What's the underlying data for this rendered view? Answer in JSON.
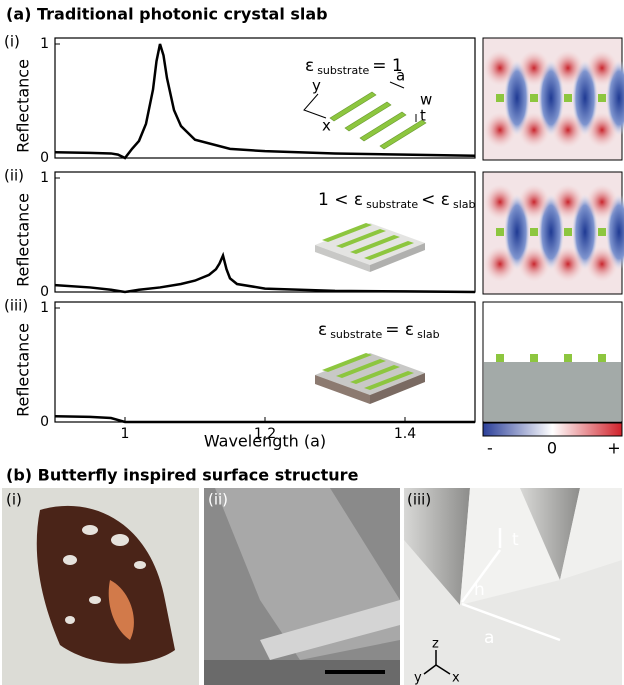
{
  "figure": {
    "title_a": "(a) Traditional photonic crystal slab",
    "title_b": "(b) Butterfly inspired surface structure",
    "colorbar_labels": [
      "-",
      "0",
      "+"
    ],
    "b_panels": [
      "(i)",
      "(ii)",
      "(iii)"
    ],
    "b_axes": [
      "z",
      "y",
      "x"
    ],
    "b_dims": [
      "t",
      "h",
      "a"
    ]
  },
  "chart_data": [
    {
      "type": "line",
      "label": "(i)",
      "ylabel": "Reflectance",
      "annotation": [
        "ε",
        "substrate",
        "= 1"
      ],
      "inset_labels": [
        "y",
        "x",
        "a",
        "w",
        "t"
      ],
      "xlim": [
        0.9,
        1.5
      ],
      "ylim": [
        0,
        1
      ],
      "yticks": [
        0,
        1
      ],
      "series": [
        {
          "name": "reflectance",
          "color": "#000000",
          "x": [
            0.9,
            0.95,
            0.98,
            0.99,
            1.0,
            1.01,
            1.02,
            1.03,
            1.04,
            1.045,
            1.05,
            1.055,
            1.06,
            1.07,
            1.08,
            1.1,
            1.15,
            1.2,
            1.3,
            1.4,
            1.5
          ],
          "values": [
            0.05,
            0.045,
            0.04,
            0.03,
            0,
            0.08,
            0.15,
            0.3,
            0.6,
            0.85,
            1.0,
            0.9,
            0.7,
            0.42,
            0.28,
            0.16,
            0.08,
            0.06,
            0.04,
            0.03,
            0.02
          ]
        }
      ]
    },
    {
      "type": "line",
      "label": "(ii)",
      "ylabel": "Reflectance",
      "annotation": [
        "1 < ε",
        "substrate",
        "< ε",
        "slab"
      ],
      "xlim": [
        0.9,
        1.5
      ],
      "ylim": [
        0,
        1
      ],
      "yticks": [
        0,
        1
      ],
      "series": [
        {
          "name": "reflectance",
          "color": "#000000",
          "x": [
            0.9,
            0.95,
            0.98,
            1.0,
            1.02,
            1.05,
            1.08,
            1.1,
            1.12,
            1.13,
            1.135,
            1.14,
            1.145,
            1.15,
            1.16,
            1.2,
            1.3,
            1.4,
            1.5
          ],
          "values": [
            0.06,
            0.04,
            0.02,
            0,
            0.02,
            0.04,
            0.07,
            0.1,
            0.15,
            0.2,
            0.25,
            0.32,
            0.2,
            0.12,
            0.07,
            0.03,
            0.01,
            0.005,
            0
          ]
        }
      ]
    },
    {
      "type": "line",
      "label": "(iii)",
      "ylabel": "Reflectance",
      "xlabel": "Wavelength (a)",
      "annotation": [
        "ε",
        "substrate",
        "= ε",
        "slab"
      ],
      "xlim": [
        0.9,
        1.5
      ],
      "ylim": [
        0,
        1
      ],
      "yticks": [
        0,
        1
      ],
      "xticks": [
        1,
        1.2,
        1.4
      ],
      "series": [
        {
          "name": "reflectance",
          "color": "#000000",
          "x": [
            0.9,
            0.95,
            0.98,
            1.0,
            1.02,
            1.2,
            1.5
          ],
          "values": [
            0.05,
            0.045,
            0.035,
            0,
            0,
            0,
            0
          ]
        }
      ]
    }
  ]
}
